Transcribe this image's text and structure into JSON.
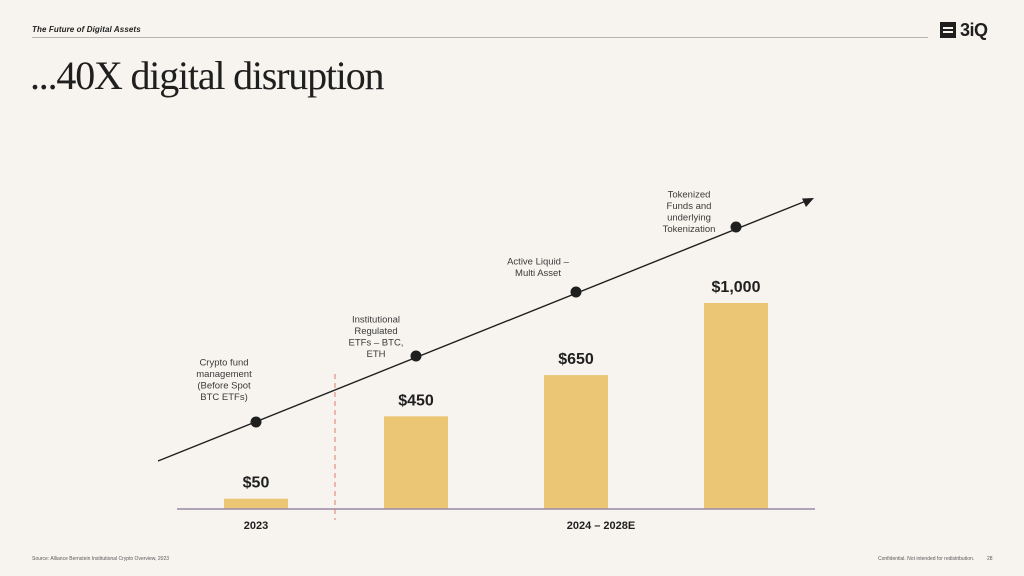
{
  "header": {
    "section_label": "The Future of Digital Assets",
    "logo_text": "3iQ",
    "logo_icon": "3iq-logo-icon"
  },
  "title": "...40X digital disruption",
  "colors": {
    "bar": "#ebc775",
    "axis": "#9a8aa6",
    "arrow": "#1f1f1f",
    "divider": "#e07a6a",
    "background": "#f7f4ef"
  },
  "chart_data": {
    "type": "bar",
    "categories": [
      "2023",
      "2024 – 2028E",
      "2024 – 2028E",
      "2024 – 2028E"
    ],
    "group_labels": [
      "2023",
      "2024 – 2028E"
    ],
    "values": [
      50,
      450,
      650,
      1000
    ],
    "value_labels": [
      "$50",
      "$450",
      "$650",
      "$1,000"
    ],
    "ylim": [
      0,
      1000
    ],
    "grid": false,
    "legend": "none",
    "milestones": [
      {
        "label_lines": [
          "Crypto fund",
          "management",
          "(Before Spot",
          "BTC ETFs)"
        ]
      },
      {
        "label_lines": [
          "Institutional",
          "Regulated",
          "ETFs – BTC,",
          "ETH"
        ]
      },
      {
        "label_lines": [
          "Active Liquid –",
          "Multi Asset"
        ]
      },
      {
        "label_lines": [
          "Tokenized",
          "Funds and",
          "underlying",
          "Tokenization"
        ]
      }
    ]
  },
  "footer": {
    "source": "Source: Alliance Bernstein Institutional Crypto Overview, 2023",
    "confidential": "Confidential. Not intended for redistribution.",
    "page_number": "28"
  }
}
